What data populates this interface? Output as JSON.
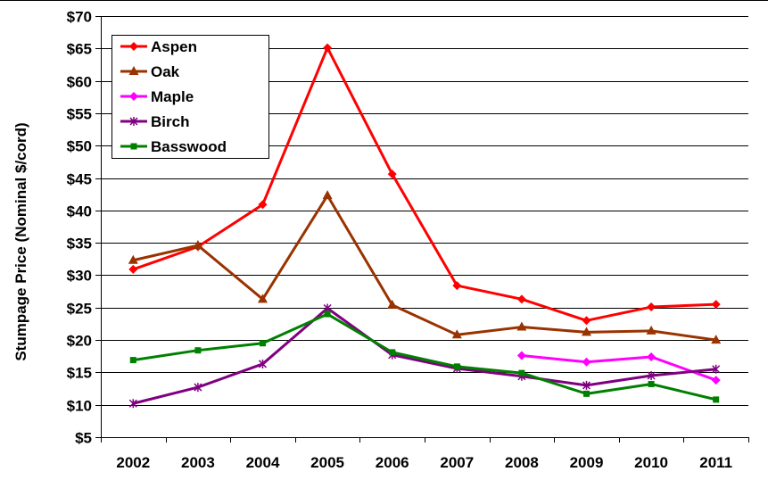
{
  "chart_data": {
    "type": "line",
    "title": "",
    "xlabel": "",
    "ylabel": "Stumpage Price (Nominal $/cord)",
    "categories": [
      "2002",
      "2003",
      "2004",
      "2005",
      "2006",
      "2007",
      "2008",
      "2009",
      "2010",
      "2011"
    ],
    "ylim": [
      5,
      70
    ],
    "yticks": [
      5,
      10,
      15,
      20,
      25,
      30,
      35,
      40,
      45,
      50,
      55,
      60,
      65,
      70
    ],
    "ytick_labels": [
      "$5",
      "$10",
      "$15",
      "$20",
      "$25",
      "$30",
      "$35",
      "$40",
      "$45",
      "$50",
      "$55",
      "$60",
      "$65",
      "$70"
    ],
    "grid": true,
    "legend_position": "top-left",
    "series": [
      {
        "name": "Aspen",
        "color": "#ff0000",
        "marker": "diamond",
        "values": [
          30.9,
          34.4,
          40.9,
          65.1,
          45.6,
          28.4,
          26.3,
          23.0,
          25.1,
          25.5
        ]
      },
      {
        "name": "Oak",
        "color": "#993300",
        "marker": "triangle",
        "values": [
          32.3,
          34.6,
          26.3,
          42.3,
          25.4,
          20.8,
          22.0,
          21.2,
          21.4,
          20.0
        ]
      },
      {
        "name": "Maple",
        "color": "#ff00ff",
        "marker": "diamond",
        "values": [
          null,
          null,
          null,
          null,
          null,
          null,
          17.6,
          16.6,
          17.4,
          13.8
        ]
      },
      {
        "name": "Birch",
        "color": "#800080",
        "marker": "star",
        "values": [
          10.2,
          12.7,
          16.3,
          24.9,
          17.7,
          15.6,
          14.4,
          13.0,
          14.5,
          15.5
        ]
      },
      {
        "name": "Basswood",
        "color": "#008000",
        "marker": "square",
        "values": [
          16.9,
          18.4,
          19.5,
          24.0,
          18.1,
          15.9,
          14.9,
          11.7,
          13.2,
          10.8
        ]
      }
    ]
  }
}
